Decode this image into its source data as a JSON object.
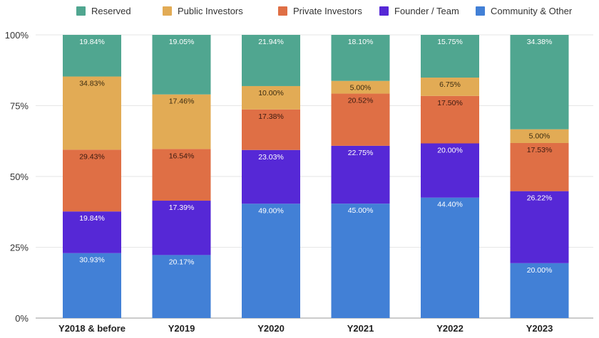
{
  "chart_data": {
    "type": "bar",
    "stacked": true,
    "normalized": true,
    "title": "",
    "xlabel": "",
    "ylabel": "",
    "ylim": [
      0,
      100
    ],
    "yticks": [
      "0%",
      "25%",
      "50%",
      "75%",
      "100%"
    ],
    "legend_position": "top",
    "grid": true,
    "categories": [
      "Y2018 & before",
      "Y2019",
      "Y2020",
      "Y2021",
      "Y2022",
      "Y2023"
    ],
    "series": [
      {
        "name": "Community & Other",
        "color": "#4280d6",
        "label_color": "#ffffff",
        "values": [
          30.93,
          20.17,
          49.0,
          45.0,
          44.4,
          20.0
        ]
      },
      {
        "name": "Founder / Team",
        "color": "#5628d6",
        "label_color": "#ffffff",
        "values": [
          19.84,
          17.39,
          23.03,
          22.75,
          20.0,
          26.22
        ]
      },
      {
        "name": "Private Investors",
        "color": "#df6f45",
        "label_color": "#3a1a10",
        "values": [
          29.43,
          16.54,
          17.38,
          20.52,
          17.5,
          17.53
        ]
      },
      {
        "name": "Public Investors",
        "color": "#e2ab55",
        "label_color": "#3a2a10",
        "values": [
          34.83,
          17.46,
          10.0,
          5.0,
          6.75,
          5.0
        ]
      },
      {
        "name": "Reserved",
        "color": "#50a690",
        "label_color": "#ffffff",
        "values": [
          19.84,
          19.05,
          21.94,
          18.1,
          15.75,
          34.38
        ]
      }
    ],
    "legend_order": [
      "Reserved",
      "Public Investors",
      "Private Investors",
      "Founder / Team",
      "Community & Other"
    ]
  }
}
